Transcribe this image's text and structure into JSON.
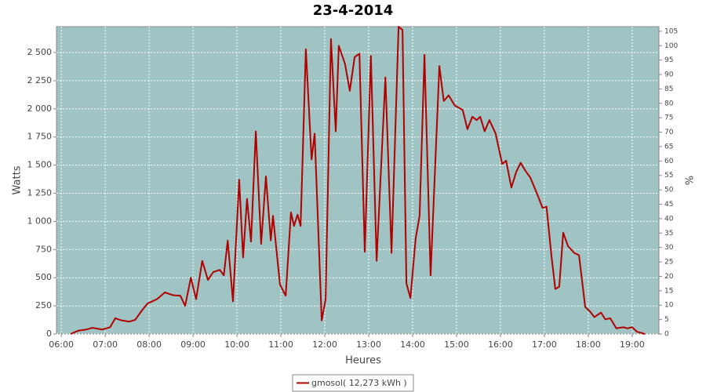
{
  "chart_data": {
    "type": "line",
    "title": "23-4-2014",
    "xlabel": "Heures",
    "ylabel": "Watts",
    "y2label": "%",
    "x": [
      6.21,
      6.39,
      6.57,
      6.71,
      6.93,
      7.11,
      7.23,
      7.38,
      7.55,
      7.68,
      7.82,
      7.96,
      8.18,
      8.36,
      8.54,
      8.71,
      8.82,
      8.95,
      9.07,
      9.21,
      9.34,
      9.46,
      9.61,
      9.7,
      9.79,
      9.91,
      10.05,
      10.14,
      10.23,
      10.32,
      10.43,
      10.55,
      10.66,
      10.77,
      10.82,
      10.98,
      11.11,
      11.23,
      11.3,
      11.38,
      11.45,
      11.57,
      11.7,
      11.77,
      11.93,
      12.02,
      12.14,
      12.25,
      12.32,
      12.46,
      12.57,
      12.68,
      12.79,
      12.91,
      13.05,
      13.18,
      13.38,
      13.52,
      13.68,
      13.77,
      13.86,
      13.95,
      14.07,
      14.16,
      14.27,
      14.41,
      14.61,
      14.71,
      14.82,
      14.96,
      15.14,
      15.25,
      15.36,
      15.46,
      15.54,
      15.64,
      15.75,
      15.89,
      16.04,
      16.13,
      16.25,
      16.36,
      16.46,
      16.57,
      16.68,
      16.82,
      16.96,
      17.05,
      17.16,
      17.25,
      17.34,
      17.43,
      17.54,
      17.68,
      17.79,
      17.93,
      18.04,
      18.14,
      18.29,
      18.39,
      18.5,
      18.64,
      18.8,
      18.89,
      19.0,
      19.11,
      19.29
    ],
    "series": [
      {
        "name": "gmosol( 12,273 kWh )",
        "color": "#b00000",
        "values": [
          0,
          30,
          40,
          55,
          40,
          60,
          140,
          120,
          110,
          125,
          200,
          270,
          310,
          370,
          345,
          340,
          250,
          500,
          310,
          650,
          480,
          550,
          570,
          520,
          830,
          290,
          1370,
          680,
          1200,
          820,
          1800,
          800,
          1400,
          830,
          1050,
          440,
          340,
          1080,
          960,
          1060,
          960,
          2530,
          1550,
          1780,
          120,
          310,
          2620,
          1800,
          2560,
          2400,
          2160,
          2460,
          2490,
          730,
          2470,
          650,
          2280,
          720,
          2730,
          2700,
          450,
          320,
          850,
          1050,
          2480,
          520,
          2380,
          2070,
          2120,
          2030,
          1990,
          1820,
          1930,
          1900,
          1930,
          1800,
          1900,
          1780,
          1510,
          1540,
          1300,
          1440,
          1520,
          1450,
          1390,
          1260,
          1120,
          1130,
          700,
          400,
          420,
          900,
          780,
          720,
          700,
          240,
          200,
          150,
          190,
          130,
          140,
          50,
          60,
          50,
          60,
          20,
          0
        ]
      }
    ],
    "xlim": [
      5.89,
      19.61
    ],
    "xticks": [
      {
        "value": 6,
        "label": "06:00"
      },
      {
        "value": 7,
        "label": "07:00"
      },
      {
        "value": 8,
        "label": "08:00"
      },
      {
        "value": 9,
        "label": "09:00"
      },
      {
        "value": 10,
        "label": "10:00"
      },
      {
        "value": 11,
        "label": "11:00"
      },
      {
        "value": 12,
        "label": "12:00"
      },
      {
        "value": 13,
        "label": "13:00"
      },
      {
        "value": 14,
        "label": "14:00"
      },
      {
        "value": 15,
        "label": "15:00"
      },
      {
        "value": 16,
        "label": "16:00"
      },
      {
        "value": 17,
        "label": "17:00"
      },
      {
        "value": 18,
        "label": "18:00"
      },
      {
        "value": 19,
        "label": "19:00"
      }
    ],
    "ylim": [
      0,
      2730
    ],
    "yticks": [
      0,
      250,
      500,
      750,
      {
        "value": 1000,
        "label": "1 000"
      },
      {
        "value": 1250,
        "label": "1 250"
      },
      {
        "value": 1500,
        "label": "1 500"
      },
      {
        "value": 1750,
        "label": "1 750"
      },
      {
        "value": 2000,
        "label": "2 000"
      },
      {
        "value": 2250,
        "label": "2 250"
      },
      {
        "value": 2500,
        "label": "2 500"
      }
    ],
    "y2lim": [
      0,
      106.6
    ],
    "y2ticks": [
      0,
      5,
      10,
      15,
      20,
      25,
      30,
      35,
      40,
      45,
      50,
      55,
      60,
      65,
      70,
      75,
      80,
      85,
      90,
      95,
      100,
      105
    ],
    "grid": true,
    "background": "#a0c4c4",
    "legend": "bottom"
  }
}
